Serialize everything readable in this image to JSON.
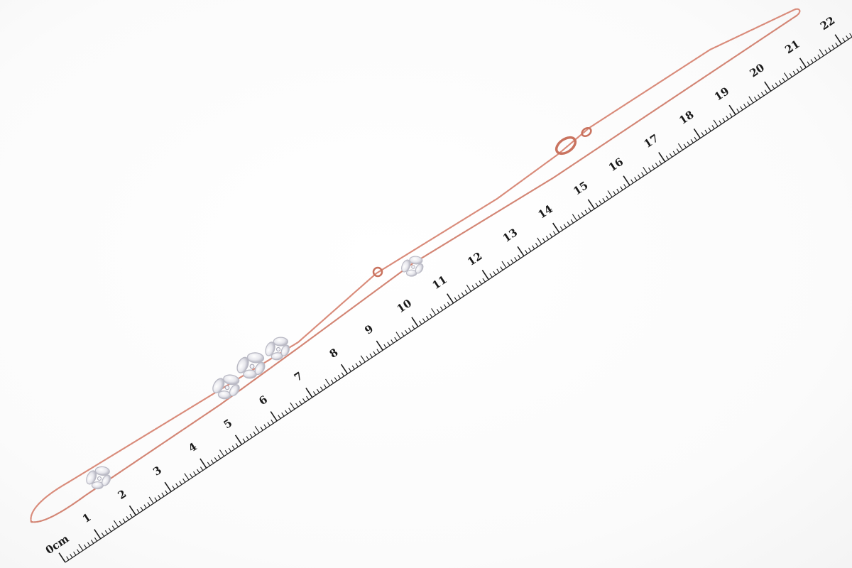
{
  "scene": {
    "subject": "rose gold chain necklace with diamond butterfly clusters",
    "colors": {
      "background": "#ffffff",
      "chain": "#d98b7a",
      "chain_dark": "#c27060",
      "stones": "#e8e8ee",
      "stone_edge": "#b9b9c4",
      "ruler_ink": "#1a1a1a"
    }
  },
  "ruler": {
    "unit_label": "0cm",
    "numbers": [
      "1",
      "2",
      "3",
      "4",
      "5",
      "6",
      "7",
      "8",
      "9",
      "10",
      "11",
      "12",
      "13",
      "14",
      "15",
      "16",
      "17",
      "18",
      "19",
      "20",
      "21",
      "22"
    ]
  }
}
